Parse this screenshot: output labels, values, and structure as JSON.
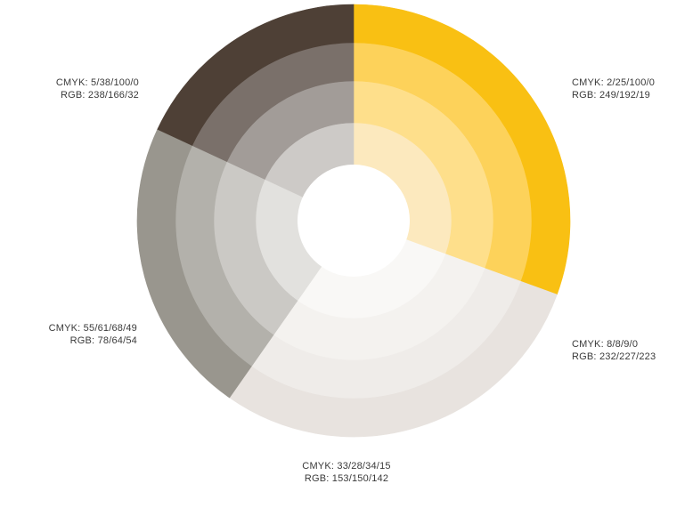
{
  "palette": {
    "swatches": [
      {
        "id": "yellow",
        "cmyk": "CMYK: 2/25/100/0",
        "rgb": "RGB: 249/192/19",
        "rings": [
          "#FCE9BE",
          "#FEDF8B",
          "#FDD25A",
          "#F9C013"
        ]
      },
      {
        "id": "light-gray",
        "cmyk": "CMYK: 8/8/9/0",
        "rgb": "RGB: 232/227/223",
        "rings": [
          "#F9F8F6",
          "#F4F2EF",
          "#EFECE9",
          "#E8E3DF"
        ]
      },
      {
        "id": "mid-gray",
        "cmyk": "CMYK: 33/28/34/15",
        "rgb": "RGB: 153/150/142",
        "rings": [
          "#E2E1DE",
          "#CBC9C5",
          "#B3B1AB",
          "#99968E"
        ]
      },
      {
        "id": "dark-brown",
        "cmyk": "CMYK: 55/61/68/49",
        "rgb": "RGB: 78/64/54",
        "rings": [
          "#CDCAC7",
          "#A29C98",
          "#7A706A",
          "#4E4036"
        ]
      },
      {
        "id": "orange",
        "cmyk": "CMYK: 5/38/100/0",
        "rgb": "RGB: 238/166/32",
        "rings": [
          "#FBE3C2",
          "#F6CF8C",
          "#F2BA58",
          "#EEA620"
        ]
      }
    ]
  }
}
